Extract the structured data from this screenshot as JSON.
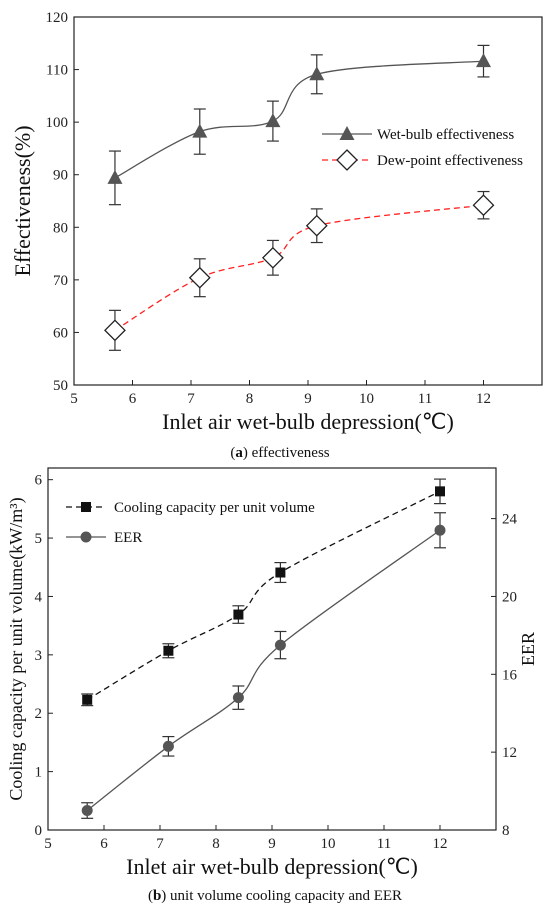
{
  "chart_data": [
    {
      "panel_label": "a",
      "caption": {
        "open": "(",
        "label": "a",
        "close": ") effectiveness"
      },
      "type": "line",
      "xlabel": "Inlet air wet-bulb depression(℃)",
      "ylabel": "Effectiveness(%)",
      "xlim": [
        5,
        13
      ],
      "ylim": [
        50,
        120
      ],
      "xticks": [
        "5",
        "6",
        "7",
        "8",
        "9",
        "10",
        "11",
        "12"
      ],
      "yticks": [
        "50",
        "60",
        "70",
        "80",
        "90",
        "100",
        "110",
        "120"
      ],
      "legend_position": "right-middle",
      "series": [
        {
          "name": "Wet-bulb effectiveness",
          "x": [
            5.7,
            7.15,
            8.4,
            9.15,
            12.0
          ],
          "y": [
            89.4,
            98.2,
            100.2,
            109.1,
            111.6
          ],
          "err": [
            5.1,
            4.3,
            3.8,
            3.7,
            3.0
          ],
          "marker": "triangle",
          "line": "solid",
          "color": "#555555"
        },
        {
          "name": "Dew-point effectiveness",
          "x": [
            5.7,
            7.15,
            8.4,
            9.15,
            12.0
          ],
          "y": [
            60.4,
            70.4,
            74.2,
            80.3,
            84.2
          ],
          "err": [
            3.8,
            3.6,
            3.3,
            3.2,
            2.6
          ],
          "marker": "diamond-open",
          "line": "dashed",
          "color": "#ff2020"
        }
      ]
    },
    {
      "panel_label": "b",
      "caption": {
        "open": "(",
        "label": "b",
        "close": ") unit volume cooling capacity and EER"
      },
      "type": "line",
      "xlabel": "Inlet air wet-bulb depression(℃)",
      "ylabel": "Cooling capacity per unit volume(kW/m³)",
      "y2label": "EER",
      "xlim": [
        5,
        13
      ],
      "ylim": [
        0,
        6.2
      ],
      "y2lim": [
        8,
        26.6
      ],
      "xticks": [
        "5",
        "6",
        "7",
        "8",
        "9",
        "10",
        "11",
        "12"
      ],
      "yticks": [
        "0",
        "1",
        "2",
        "3",
        "4",
        "5",
        "6"
      ],
      "y2ticks": [
        "8",
        "12",
        "16",
        "20",
        "24"
      ],
      "legend_position": "top-left",
      "series": [
        {
          "name": "Cooling capacity per unit volume",
          "axis": "left",
          "x": [
            5.7,
            7.15,
            8.4,
            9.15,
            12.0
          ],
          "y": [
            2.23,
            3.07,
            3.69,
            4.41,
            5.8
          ],
          "err": [
            0.1,
            0.12,
            0.15,
            0.17,
            0.21
          ],
          "marker": "square",
          "line": "dashed",
          "color": "#111111"
        },
        {
          "name": "EER",
          "axis": "right",
          "x": [
            5.7,
            7.15,
            8.4,
            9.15,
            12.0
          ],
          "y": [
            9.0,
            12.3,
            14.8,
            17.5,
            23.4
          ],
          "err": [
            0.4,
            0.5,
            0.6,
            0.7,
            0.9
          ],
          "marker": "circle",
          "line": "solid",
          "color": "#555555"
        }
      ]
    }
  ]
}
